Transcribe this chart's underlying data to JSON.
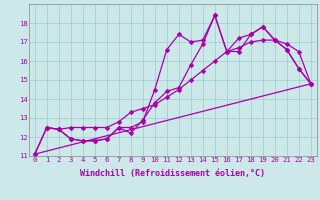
{
  "xlabel": "Windchill (Refroidissement éolien,°C)",
  "xlim": [
    -0.5,
    23.5
  ],
  "ylim": [
    11,
    19
  ],
  "xticks": [
    0,
    1,
    2,
    3,
    4,
    5,
    6,
    7,
    8,
    9,
    10,
    11,
    12,
    13,
    14,
    15,
    16,
    17,
    18,
    19,
    20,
    21,
    22,
    23
  ],
  "yticks": [
    11,
    12,
    13,
    14,
    15,
    16,
    17,
    18
  ],
  "background_color": "#cce8e8",
  "line_color": "#aa00aa",
  "grid_color": "#99cccc",
  "line1_x": [
    0,
    1,
    2,
    3,
    4,
    5,
    6,
    7,
    8,
    9,
    10,
    11,
    12,
    13,
    14,
    15,
    16,
    17,
    18,
    19,
    20,
    21,
    22,
    23
  ],
  "line1_y": [
    11.1,
    12.5,
    12.4,
    11.9,
    11.8,
    11.8,
    11.9,
    12.5,
    12.5,
    12.8,
    14.5,
    16.6,
    17.4,
    17.0,
    17.1,
    18.4,
    16.5,
    16.5,
    17.4,
    17.8,
    17.1,
    16.6,
    15.6,
    14.8
  ],
  "line2_x": [
    0,
    1,
    2,
    3,
    4,
    5,
    6,
    7,
    8,
    9,
    10,
    11,
    12,
    13,
    14,
    15,
    16,
    17,
    18,
    19,
    20,
    21,
    22,
    23
  ],
  "line2_y": [
    11.1,
    12.5,
    12.4,
    11.9,
    11.8,
    11.8,
    11.9,
    12.5,
    12.2,
    12.9,
    13.8,
    14.4,
    14.6,
    15.8,
    16.9,
    18.4,
    16.5,
    17.2,
    17.4,
    17.8,
    17.1,
    16.6,
    15.6,
    14.8
  ],
  "line3_x": [
    1,
    2,
    3,
    4,
    5,
    6,
    7,
    8,
    9,
    10,
    11,
    12,
    13,
    14,
    15,
    16,
    17,
    18,
    19,
    20,
    21,
    22,
    23
  ],
  "line3_y": [
    12.5,
    12.4,
    12.5,
    12.5,
    12.5,
    12.5,
    12.8,
    13.3,
    13.5,
    13.7,
    14.1,
    14.5,
    15.0,
    15.5,
    16.0,
    16.5,
    16.7,
    17.0,
    17.1,
    17.1,
    16.9,
    16.5,
    14.8
  ],
  "line4_x": [
    0,
    23
  ],
  "line4_y": [
    11.1,
    14.8
  ],
  "markersize": 2.5,
  "linewidth": 0.9,
  "font_family": "monospace",
  "tick_fontsize": 5.2,
  "xlabel_fontsize": 6.0
}
